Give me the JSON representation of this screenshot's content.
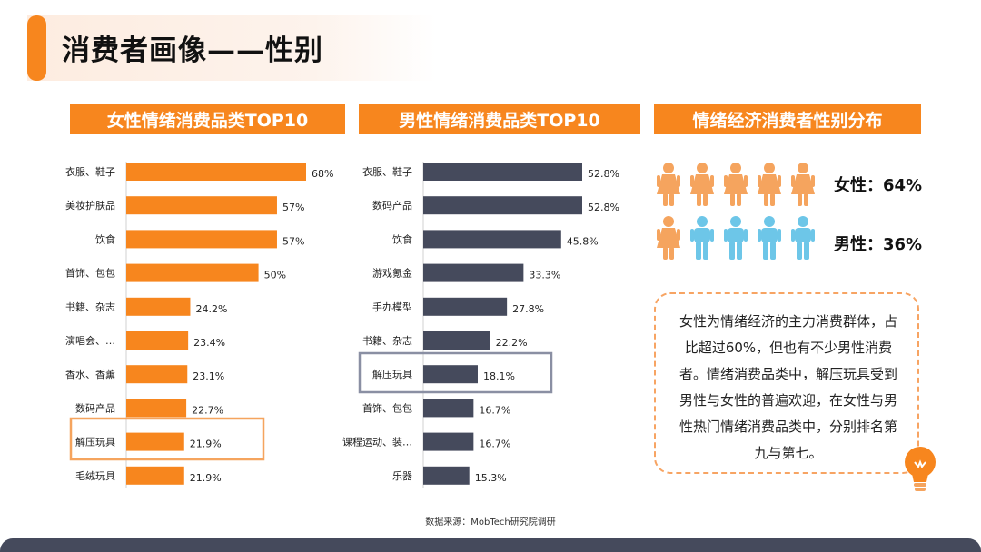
{
  "page": {
    "title": "消费者画像——性别"
  },
  "headers": {
    "female": "女性情绪消费品类TOP10",
    "male": "男性情绪消费品类TOP10",
    "distribution": "情绪经济消费者性别分布"
  },
  "colors": {
    "accent": "#f7861e",
    "male_bar": "#454a5c",
    "female_icon": "#f5a45e",
    "male_icon": "#6dc6e8",
    "highlight_female": "#f5a45e",
    "highlight_male": "#8a8fa3"
  },
  "distribution": {
    "female_label": "女性：64%",
    "male_label": "男性：36%",
    "female_icons": 6,
    "male_icons": 4
  },
  "note": "女性为情绪经济的主力消费群体，占比超过60%，但也有不少男性消费者。情绪消费品类中，解压玩具受到男性与女性的普遍欢迎，在女性与男性热门情绪消费品类中，分别排名第九与第七。",
  "source": "数据来源：MobTech研究院调研",
  "chart_data": [
    {
      "type": "bar",
      "title": "女性情绪消费品类TOP10",
      "orientation": "horizontal",
      "categories": [
        "衣服、鞋子",
        "美妆护肤品",
        "饮食",
        "首饰、包包",
        "书籍、杂志",
        "演唱会、…",
        "香水、香薰",
        "数码产品",
        "解压玩具",
        "毛绒玩具"
      ],
      "values": [
        68,
        57,
        57,
        50,
        24.2,
        23.4,
        23.1,
        22.7,
        21.9,
        21.9
      ],
      "value_labels": [
        "68%",
        "57%",
        "57%",
        "50%",
        "24.2%",
        "23.4%",
        "23.1%",
        "22.7%",
        "21.9%",
        "21.9%"
      ],
      "highlight": "解压玩具",
      "color": "#f7861e"
    },
    {
      "type": "bar",
      "title": "男性情绪消费品类TOP10",
      "orientation": "horizontal",
      "categories": [
        "衣服、鞋子",
        "数码产品",
        "饮食",
        "游戏氪金",
        "手办模型",
        "书籍、杂志",
        "解压玩具",
        "首饰、包包",
        "课程运动、装…",
        "乐器"
      ],
      "values": [
        52.8,
        52.8,
        45.8,
        33.3,
        27.8,
        22.2,
        18.1,
        16.7,
        16.7,
        15.3
      ],
      "value_labels": [
        "52.8%",
        "52.8%",
        "45.8%",
        "33.3%",
        "27.8%",
        "22.2%",
        "18.1%",
        "16.7%",
        "16.7%",
        "15.3%"
      ],
      "highlight": "解压玩具",
      "color": "#454a5c"
    }
  ]
}
